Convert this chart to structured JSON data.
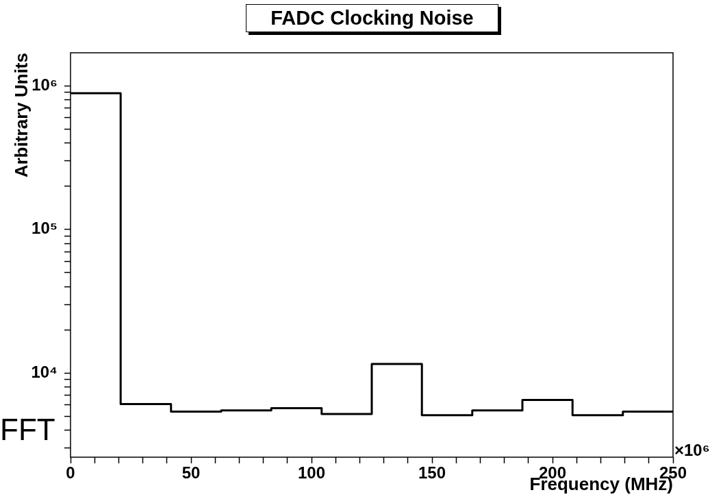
{
  "chart_data": {
    "type": "histogram",
    "title": "FADC Clocking Noise",
    "xlabel": "Frequency (MHz)",
    "ylabel": "Arbitrary Units",
    "annotations": [
      "×10⁶",
      "FFT"
    ],
    "bins": [
      0,
      20.8,
      41.7,
      62.5,
      83.3,
      104.2,
      125,
      145.8,
      166.7,
      187.5,
      208.3,
      229.2,
      250
    ],
    "values": [
      890000,
      6100,
      5400,
      5500,
      5700,
      5200,
      11600,
      5100,
      5500,
      6500,
      5100,
      5400
    ],
    "color": "#000000",
    "log": "y",
    "xlim": [
      0,
      250
    ],
    "xticks": [
      0,
      {
        "value": 10,
        "label": null
      },
      {
        "value": 20,
        "label": null
      },
      {
        "value": 30,
        "label": null
      },
      {
        "value": 40,
        "label": null
      },
      50,
      {
        "value": 60,
        "label": null
      },
      {
        "value": 70,
        "label": null
      },
      {
        "value": 80,
        "label": null
      },
      {
        "value": 90,
        "label": null
      },
      100,
      {
        "value": 110,
        "label": null
      },
      {
        "value": 120,
        "label": null
      },
      {
        "value": 130,
        "label": null
      },
      {
        "value": 140,
        "label": null
      },
      150,
      {
        "value": 160,
        "label": null
      },
      {
        "value": 170,
        "label": null
      },
      {
        "value": 180,
        "label": null
      },
      {
        "value": 190,
        "label": null
      },
      200,
      {
        "value": 210,
        "label": null
      },
      {
        "value": 220,
        "label": null
      },
      {
        "value": 230,
        "label": null
      },
      {
        "value": 240,
        "label": null
      },
      250
    ],
    "ylim": [
      2600,
      1700000
    ],
    "yticks": [
      {
        "value": 3000,
        "label": null
      },
      {
        "value": 4000,
        "label": null
      },
      {
        "value": 5000,
        "label": null
      },
      {
        "value": 6000,
        "label": null
      },
      {
        "value": 7000,
        "label": null
      },
      {
        "value": 8000,
        "label": null
      },
      {
        "value": 9000,
        "label": null
      },
      {
        "value": 10000,
        "label": "10⁴"
      },
      {
        "value": 20000,
        "label": null
      },
      {
        "value": 30000,
        "label": null
      },
      {
        "value": 40000,
        "label": null
      },
      {
        "value": 50000,
        "label": null
      },
      {
        "value": 60000,
        "label": null
      },
      {
        "value": 70000,
        "label": null
      },
      {
        "value": 80000,
        "label": null
      },
      {
        "value": 90000,
        "label": null
      },
      {
        "value": 100000,
        "label": "10⁵"
      },
      {
        "value": 200000,
        "label": null
      },
      {
        "value": 300000,
        "label": null
      },
      {
        "value": 400000,
        "label": null
      },
      {
        "value": 500000,
        "label": null
      },
      {
        "value": 600000,
        "label": null
      },
      {
        "value": 700000,
        "label": null
      },
      {
        "value": 800000,
        "label": null
      },
      {
        "value": 900000,
        "label": null
      },
      {
        "value": 1000000,
        "label": "10⁶"
      }
    ]
  }
}
